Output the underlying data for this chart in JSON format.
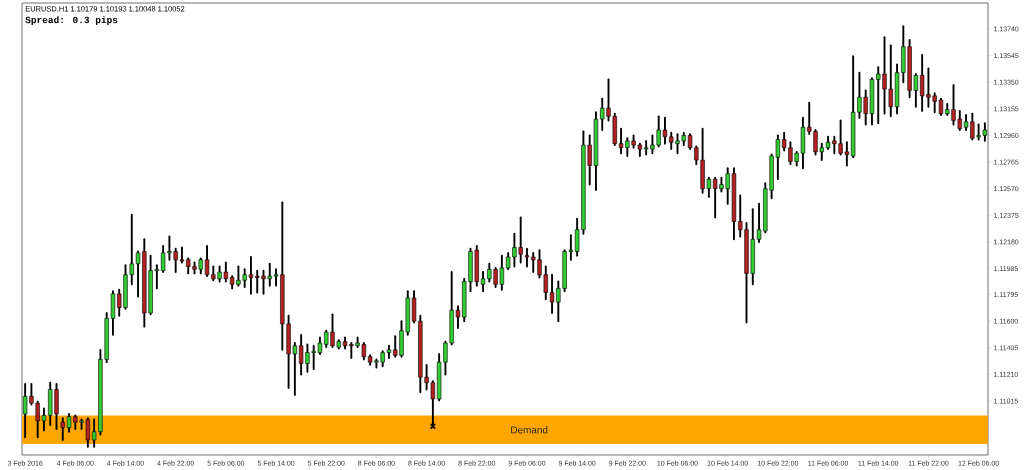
{
  "chart_data": {
    "type": "candlestick",
    "title": "EURUSD,H1  1.10179 1.10193 1.10048 1.10052",
    "subtitle": "Spread: 0.3 pips",
    "categories": [
      "3 Feb 2016",
      null,
      null,
      null,
      null,
      null,
      null,
      null,
      "4 Feb 06:00",
      null,
      null,
      null,
      null,
      null,
      null,
      null,
      "4 Feb 14:00",
      null,
      null,
      null,
      null,
      null,
      null,
      null,
      "4 Feb 22:00",
      null,
      null,
      null,
      null,
      null,
      null,
      null,
      "5 Feb 06:00",
      null,
      null,
      null,
      null,
      null,
      null,
      null,
      "5 Feb 14:00",
      null,
      null,
      null,
      null,
      null,
      null,
      null,
      "5 Feb 22:00",
      null,
      null,
      null,
      null,
      null,
      null,
      null,
      "8 Feb 06:00",
      null,
      null,
      null,
      null,
      null,
      null,
      null,
      "8 Feb 14:00",
      null,
      null,
      null,
      null,
      null,
      null,
      null,
      "8 Feb 22:00",
      null,
      null,
      null,
      null,
      null,
      null,
      null,
      "9 Feb 06:00",
      null,
      null,
      null,
      null,
      null,
      null,
      null,
      "9 Feb 14:00",
      null,
      null,
      null,
      null,
      null,
      null,
      null,
      "9 Feb 22:00",
      null,
      null,
      null,
      null,
      null,
      null,
      null,
      "10 Feb 06:00",
      null,
      null,
      null,
      null,
      null,
      null,
      null,
      "10 Feb 14:00",
      null,
      null,
      null,
      null,
      null,
      null,
      null,
      "10 Feb 22:00",
      null,
      null,
      null,
      null,
      null,
      null,
      null,
      "11 Feb 06:00",
      null,
      null,
      null,
      null,
      null,
      null,
      null,
      "11 Feb 14:00",
      null,
      null,
      null,
      null,
      null,
      null,
      null,
      "11 Feb 22:00",
      null,
      null,
      null,
      null,
      null,
      null,
      null,
      "12 Feb 06:00",
      null
    ],
    "ohlc": [
      [
        1.1092,
        1.1114,
        1.1075,
        1.1105
      ],
      [
        1.1105,
        1.1114,
        1.1099,
        1.11
      ],
      [
        1.11,
        1.1101,
        1.1075,
        1.1087
      ],
      [
        1.1087,
        1.1096,
        1.108,
        1.1091
      ],
      [
        1.1091,
        1.1115,
        1.1084,
        1.111
      ],
      [
        1.111,
        1.1114,
        1.1081,
        1.1092
      ],
      [
        1.1086,
        1.1089,
        1.1073,
        1.1082
      ],
      [
        1.1082,
        1.1092,
        1.1079,
        1.109
      ],
      [
        1.109,
        1.1091,
        1.1081,
        1.1086
      ],
      [
        1.1086,
        1.1088,
        1.1081,
        1.1087
      ],
      [
        1.1088,
        1.1089,
        1.1068,
        1.1073
      ],
      [
        1.1073,
        1.1088,
        1.1068,
        1.1079
      ],
      [
        1.1079,
        1.1139,
        1.1077,
        1.1132
      ],
      [
        1.1132,
        1.1166,
        1.113,
        1.1162
      ],
      [
        1.1162,
        1.1182,
        1.115,
        1.118
      ],
      [
        1.118,
        1.1183,
        1.1164,
        1.117
      ],
      [
        1.117,
        1.1201,
        1.1169,
        1.1194
      ],
      [
        1.1194,
        1.1238,
        1.1187,
        1.1202
      ],
      [
        1.1202,
        1.1211,
        1.1178,
        1.121
      ],
      [
        1.1211,
        1.122,
        1.1156,
        1.1166
      ],
      [
        1.1166,
        1.1208,
        1.1165,
        1.1197
      ],
      [
        1.1197,
        1.1201,
        1.1184,
        1.1198
      ],
      [
        1.1197,
        1.1215,
        1.1196,
        1.121
      ],
      [
        1.121,
        1.1222,
        1.1205,
        1.1211
      ],
      [
        1.1211,
        1.1213,
        1.1196,
        1.1205
      ],
      [
        1.1205,
        1.1214,
        1.1203,
        1.1204
      ],
      [
        1.1205,
        1.1206,
        1.1195,
        1.12
      ],
      [
        1.12,
        1.1203,
        1.1195,
        1.1198
      ],
      [
        1.1198,
        1.1206,
        1.1195,
        1.1205
      ],
      [
        1.1205,
        1.1215,
        1.1193,
        1.1194
      ],
      [
        1.1194,
        1.12,
        1.119,
        1.1191
      ],
      [
        1.1191,
        1.12,
        1.1189,
        1.1196
      ],
      [
        1.1196,
        1.1203,
        1.1189,
        1.1191
      ],
      [
        1.1192,
        1.1193,
        1.1184,
        1.1187
      ],
      [
        1.1187,
        1.12,
        1.1186,
        1.119
      ],
      [
        1.119,
        1.1198,
        1.1185,
        1.1194
      ],
      [
        1.1194,
        1.1207,
        1.118,
        1.1192
      ],
      [
        1.1193,
        1.1197,
        1.1181,
        1.1192
      ],
      [
        1.1193,
        1.1197,
        1.118,
        1.1191
      ],
      [
        1.1191,
        1.1202,
        1.1186,
        1.1193
      ],
      [
        1.1193,
        1.1198,
        1.1186,
        1.1194
      ],
      [
        1.1194,
        1.1247,
        1.1139,
        1.1158
      ],
      [
        1.1158,
        1.1164,
        1.1111,
        1.1136
      ],
      [
        1.1136,
        1.1144,
        1.1106,
        1.1142
      ],
      [
        1.1142,
        1.115,
        1.1121,
        1.1129
      ],
      [
        1.1129,
        1.1143,
        1.1123,
        1.1137
      ],
      [
        1.1137,
        1.1142,
        1.1125,
        1.1138
      ],
      [
        1.1137,
        1.1148,
        1.1136,
        1.1144
      ],
      [
        1.1143,
        1.1153,
        1.1141,
        1.1152
      ],
      [
        1.1152,
        1.1165,
        1.1141,
        1.1142
      ],
      [
        1.1141,
        1.1146,
        1.114,
        1.1145
      ],
      [
        1.1145,
        1.1148,
        1.114,
        1.1142
      ],
      [
        1.1143,
        1.1144,
        1.1133,
        1.1142
      ],
      [
        1.1142,
        1.1148,
        1.1141,
        1.1144
      ],
      [
        1.1143,
        1.1144,
        1.1132,
        1.1134
      ],
      [
        1.1134,
        1.1135,
        1.1128,
        1.113
      ],
      [
        1.113,
        1.1132,
        1.1126,
        1.1131
      ],
      [
        1.113,
        1.1138,
        1.1127,
        1.1137
      ],
      [
        1.1137,
        1.1142,
        1.1133,
        1.1139
      ],
      [
        1.1139,
        1.1149,
        1.1134,
        1.1135
      ],
      [
        1.1135,
        1.116,
        1.1134,
        1.1153
      ],
      [
        1.1152,
        1.1182,
        1.115,
        1.1177
      ],
      [
        1.1177,
        1.1182,
        1.1159,
        1.116
      ],
      [
        1.116,
        1.1164,
        1.1108,
        1.1119
      ],
      [
        1.1119,
        1.1128,
        1.111,
        1.1115
      ],
      [
        1.1115,
        1.1116,
        1.1083,
        1.1103
      ],
      [
        1.1103,
        1.1136,
        1.1102,
        1.113
      ],
      [
        1.113,
        1.1145,
        1.1121,
        1.1144
      ],
      [
        1.1144,
        1.1196,
        1.1143,
        1.1168
      ],
      [
        1.1168,
        1.1171,
        1.1155,
        1.1163
      ],
      [
        1.1163,
        1.1191,
        1.116,
        1.1189
      ],
      [
        1.1189,
        1.1213,
        1.1182,
        1.1211
      ],
      [
        1.1212,
        1.1215,
        1.1186,
        1.1189
      ],
      [
        1.1187,
        1.1196,
        1.1182,
        1.1191
      ],
      [
        1.1191,
        1.1202,
        1.1189,
        1.1198
      ],
      [
        1.1198,
        1.1199,
        1.1185,
        1.1187
      ],
      [
        1.1187,
        1.1208,
        1.1183,
        1.1199
      ],
      [
        1.1199,
        1.121,
        1.1198,
        1.1207
      ],
      [
        1.1207,
        1.1224,
        1.12,
        1.1214
      ],
      [
        1.1214,
        1.1236,
        1.1203,
        1.1209
      ],
      [
        1.1208,
        1.1213,
        1.12,
        1.1207
      ],
      [
        1.1207,
        1.121,
        1.1196,
        1.1205
      ],
      [
        1.1205,
        1.1212,
        1.1192,
        1.1194
      ],
      [
        1.1194,
        1.12,
        1.1176,
        1.1181
      ],
      [
        1.1181,
        1.1194,
        1.1166,
        1.1174
      ],
      [
        1.1174,
        1.1189,
        1.116,
        1.1184
      ],
      [
        1.1184,
        1.1212,
        1.1182,
        1.1211
      ],
      [
        1.1211,
        1.1223,
        1.1205,
        1.1212
      ],
      [
        1.1211,
        1.1235,
        1.1208,
        1.1227
      ],
      [
        1.1227,
        1.1299,
        1.1224,
        1.1289
      ],
      [
        1.1289,
        1.1296,
        1.126,
        1.1274
      ],
      [
        1.1274,
        1.1313,
        1.1256,
        1.1308
      ],
      [
        1.1308,
        1.1323,
        1.13,
        1.1316
      ],
      [
        1.1316,
        1.1337,
        1.1307,
        1.131
      ],
      [
        1.131,
        1.1312,
        1.1289,
        1.129
      ],
      [
        1.129,
        1.1301,
        1.1283,
        1.1287
      ],
      [
        1.1287,
        1.1294,
        1.1281,
        1.1292
      ],
      [
        1.1292,
        1.1296,
        1.1287,
        1.1289
      ],
      [
        1.1289,
        1.129,
        1.1281,
        1.1286
      ],
      [
        1.1286,
        1.1292,
        1.1282,
        1.1287
      ],
      [
        1.1286,
        1.1296,
        1.1283,
        1.1289
      ],
      [
        1.1289,
        1.131,
        1.1288,
        1.13
      ],
      [
        1.13,
        1.1309,
        1.129,
        1.1295
      ],
      [
        1.1295,
        1.1298,
        1.1286,
        1.1291
      ],
      [
        1.129,
        1.1297,
        1.1283,
        1.1292
      ],
      [
        1.1292,
        1.1298,
        1.1289,
        1.1296
      ],
      [
        1.1296,
        1.1297,
        1.1286,
        1.1287
      ],
      [
        1.1287,
        1.1288,
        1.1275,
        1.1278
      ],
      [
        1.1278,
        1.1301,
        1.1254,
        1.1257
      ],
      [
        1.1257,
        1.1265,
        1.1251,
        1.1264
      ],
      [
        1.1264,
        1.1265,
        1.1236,
        1.1257
      ],
      [
        1.1257,
        1.1265,
        1.1255,
        1.126
      ],
      [
        1.1257,
        1.1272,
        1.1246,
        1.1268
      ],
      [
        1.1268,
        1.1272,
        1.122,
        1.1233
      ],
      [
        1.1233,
        1.1252,
        1.1222,
        1.1227
      ],
      [
        1.1227,
        1.1232,
        1.1159,
        1.1195
      ],
      [
        1.1195,
        1.1242,
        1.1187,
        1.122
      ],
      [
        1.122,
        1.1246,
        1.1218,
        1.1227
      ],
      [
        1.1226,
        1.1261,
        1.1225,
        1.1257
      ],
      [
        1.1256,
        1.1282,
        1.125,
        1.1281
      ],
      [
        1.128,
        1.1296,
        1.1264,
        1.1293
      ],
      [
        1.1293,
        1.1298,
        1.1285,
        1.1287
      ],
      [
        1.1287,
        1.1291,
        1.1275,
        1.1277
      ],
      [
        1.1277,
        1.1284,
        1.1274,
        1.1283
      ],
      [
        1.1283,
        1.1309,
        1.1272,
        1.1302
      ],
      [
        1.1302,
        1.132,
        1.1297,
        1.1299
      ],
      [
        1.1299,
        1.13,
        1.1282,
        1.1284
      ],
      [
        1.1284,
        1.129,
        1.1278,
        1.1287
      ],
      [
        1.1287,
        1.1295,
        1.1286,
        1.1291
      ],
      [
        1.1292,
        1.1295,
        1.1283,
        1.129
      ],
      [
        1.129,
        1.1307,
        1.1282,
        1.1283
      ],
      [
        1.1284,
        1.1291,
        1.1274,
        1.1282
      ],
      [
        1.1281,
        1.1354,
        1.128,
        1.1313
      ],
      [
        1.1313,
        1.1342,
        1.1309,
        1.1324
      ],
      [
        1.1324,
        1.1329,
        1.1304,
        1.1312
      ],
      [
        1.1312,
        1.1338,
        1.1304,
        1.1337
      ],
      [
        1.1337,
        1.1346,
        1.1305,
        1.1341
      ],
      [
        1.1341,
        1.1368,
        1.1312,
        1.133
      ],
      [
        1.133,
        1.1362,
        1.131,
        1.1317
      ],
      [
        1.1317,
        1.1348,
        1.1312,
        1.1342
      ],
      [
        1.1342,
        1.1376,
        1.1335,
        1.1361
      ],
      [
        1.1361,
        1.1366,
        1.1324,
        1.1329
      ],
      [
        1.1329,
        1.1341,
        1.1317,
        1.134
      ],
      [
        1.134,
        1.1355,
        1.1314,
        1.1325
      ],
      [
        1.1326,
        1.1345,
        1.1317,
        1.1324
      ],
      [
        1.1325,
        1.1327,
        1.1313,
        1.1321
      ],
      [
        1.1322,
        1.1323,
        1.1311,
        1.1312
      ],
      [
        1.1312,
        1.1319,
        1.1311,
        1.1315
      ],
      [
        1.1315,
        1.1333,
        1.1304,
        1.1307
      ],
      [
        1.1308,
        1.1314,
        1.13,
        1.1301
      ],
      [
        1.1302,
        1.1311,
        1.13,
        1.1306
      ],
      [
        1.1306,
        1.1312,
        1.1293,
        1.1294
      ],
      [
        1.1295,
        1.1304,
        1.1293,
        1.1296
      ],
      [
        1.1296,
        1.1305,
        1.1292,
        1.13
      ]
    ],
    "colors": [
      "#32cd32",
      "#b22222",
      "#b22222",
      "#32cd32",
      "#32cd32",
      "#b22222",
      "#b22222",
      "#32cd32",
      "#b22222",
      "#32cd32",
      "#b22222",
      "#32cd32",
      "#32cd32",
      "#32cd32",
      "#32cd32",
      "#b22222",
      "#32cd32",
      "#32cd32",
      "#32cd32",
      "#b22222",
      "#32cd32",
      "#32cd32",
      "#32cd32",
      "#32cd32",
      "#b22222",
      "#b22222",
      "#b22222",
      "#b22222",
      "#32cd32",
      "#b22222",
      "#b22222",
      "#32cd32",
      "#b22222",
      "#b22222",
      "#32cd32",
      "#32cd32",
      "#b22222",
      "#b22222",
      "#b22222",
      "#32cd32",
      "#32cd32",
      "#b22222",
      "#b22222",
      "#32cd32",
      "#b22222",
      "#32cd32",
      "#32cd32",
      "#32cd32",
      "#32cd32",
      "#b22222",
      "#32cd32",
      "#b22222",
      "#b22222",
      "#32cd32",
      "#b22222",
      "#b22222",
      "#32cd32",
      "#32cd32",
      "#32cd32",
      "#b22222",
      "#32cd32",
      "#32cd32",
      "#b22222",
      "#b22222",
      "#b22222",
      "#b22222",
      "#32cd32",
      "#32cd32",
      "#32cd32",
      "#b22222",
      "#32cd32",
      "#32cd32",
      "#b22222",
      "#32cd32",
      "#32cd32",
      "#b22222",
      "#32cd32",
      "#32cd32",
      "#32cd32",
      "#b22222",
      "#b22222",
      "#b22222",
      "#b22222",
      "#b22222",
      "#b22222",
      "#32cd32",
      "#32cd32",
      "#32cd32",
      "#32cd32",
      "#32cd32",
      "#b22222",
      "#32cd32",
      "#32cd32",
      "#b22222",
      "#b22222",
      "#b22222",
      "#32cd32",
      "#b22222",
      "#b22222",
      "#32cd32",
      "#32cd32",
      "#32cd32",
      "#b22222",
      "#b22222",
      "#32cd32",
      "#32cd32",
      "#b22222",
      "#b22222",
      "#b22222",
      "#32cd32",
      "#b22222",
      "#32cd32",
      "#32cd32",
      "#b22222",
      "#b22222",
      "#b22222",
      "#32cd32",
      "#32cd32",
      "#32cd32",
      "#32cd32",
      "#32cd32",
      "#b22222",
      "#b22222",
      "#32cd32",
      "#32cd32",
      "#b22222",
      "#b22222",
      "#32cd32",
      "#32cd32",
      "#b22222",
      "#b22222",
      "#b22222",
      "#32cd32",
      "#32cd32",
      "#b22222",
      "#32cd32",
      "#32cd32",
      "#b22222",
      "#b22222",
      "#32cd32",
      "#32cd32",
      "#b22222",
      "#32cd32",
      "#b22222",
      "#b22222",
      "#b22222",
      "#b22222",
      "#32cd32",
      "#b22222",
      "#b22222",
      "#32cd32",
      "#b22222",
      "#32cd32",
      "#32cd32"
    ],
    "series": [
      {
        "type": "scatter",
        "marker": "cross",
        "color": "#000000",
        "values": [
          null,
          null,
          null,
          null,
          null,
          null,
          null,
          null,
          null,
          null,
          null,
          null,
          null,
          null,
          null,
          null,
          null,
          null,
          null,
          null,
          null,
          null,
          null,
          null,
          null,
          null,
          null,
          null,
          null,
          null,
          null,
          null,
          null,
          null,
          null,
          null,
          null,
          null,
          null,
          null,
          null,
          null,
          null,
          null,
          null,
          null,
          null,
          null,
          null,
          null,
          null,
          null,
          null,
          null,
          null,
          null,
          null,
          null,
          null,
          null,
          null,
          null,
          null,
          null,
          null,
          1.1083,
          null,
          null,
          null,
          null,
          null,
          null,
          null,
          null,
          null,
          null,
          null,
          null,
          null,
          null,
          null,
          null,
          null,
          null,
          null,
          null,
          null,
          null,
          null,
          null,
          null,
          null,
          null,
          null,
          null,
          null,
          null,
          null,
          null,
          null,
          null,
          null,
          null,
          null,
          null,
          null,
          null,
          null,
          null,
          null,
          null,
          null,
          null,
          null,
          null,
          null,
          null,
          null,
          null,
          null,
          null,
          null,
          null,
          null,
          null,
          null,
          null,
          null,
          null,
          null,
          null,
          null,
          null,
          null,
          null,
          null,
          null,
          null,
          null,
          null,
          null,
          null,
          null,
          null,
          null,
          null,
          null,
          null,
          null,
          null,
          null,
          null,
          null,
          null
        ]
      }
    ],
    "bands": [
      {
        "axis": "y",
        "from": 1.107,
        "to": 1.1091,
        "label": "Demand",
        "color": "#ffa500"
      }
    ],
    "ylim": [
      1.1062,
      1.1393
    ],
    "yticks": [
      {
        "value": 1.11015,
        "label": "1.11015"
      },
      {
        "value": 1.1121,
        "label": "1.11210"
      },
      {
        "value": 1.11405,
        "label": "1.11405"
      },
      {
        "value": 1.116,
        "label": "1.11600"
      },
      {
        "value": 1.11795,
        "label": "1.11795"
      },
      {
        "value": 1.11985,
        "label": "1.11985"
      },
      {
        "value": 1.1218,
        "label": "1.12180"
      },
      {
        "value": 1.12375,
        "label": "1.12375"
      },
      {
        "value": 1.1257,
        "label": "1.12570"
      },
      {
        "value": 1.12765,
        "label": "1.12765"
      },
      {
        "value": 1.1296,
        "label": "1.12960"
      },
      {
        "value": 1.13155,
        "label": "1.13155"
      },
      {
        "value": 1.1335,
        "label": "1.13350"
      },
      {
        "value": 1.13545,
        "label": "1.13545"
      },
      {
        "value": 1.1374,
        "label": "1.13740"
      }
    ]
  }
}
